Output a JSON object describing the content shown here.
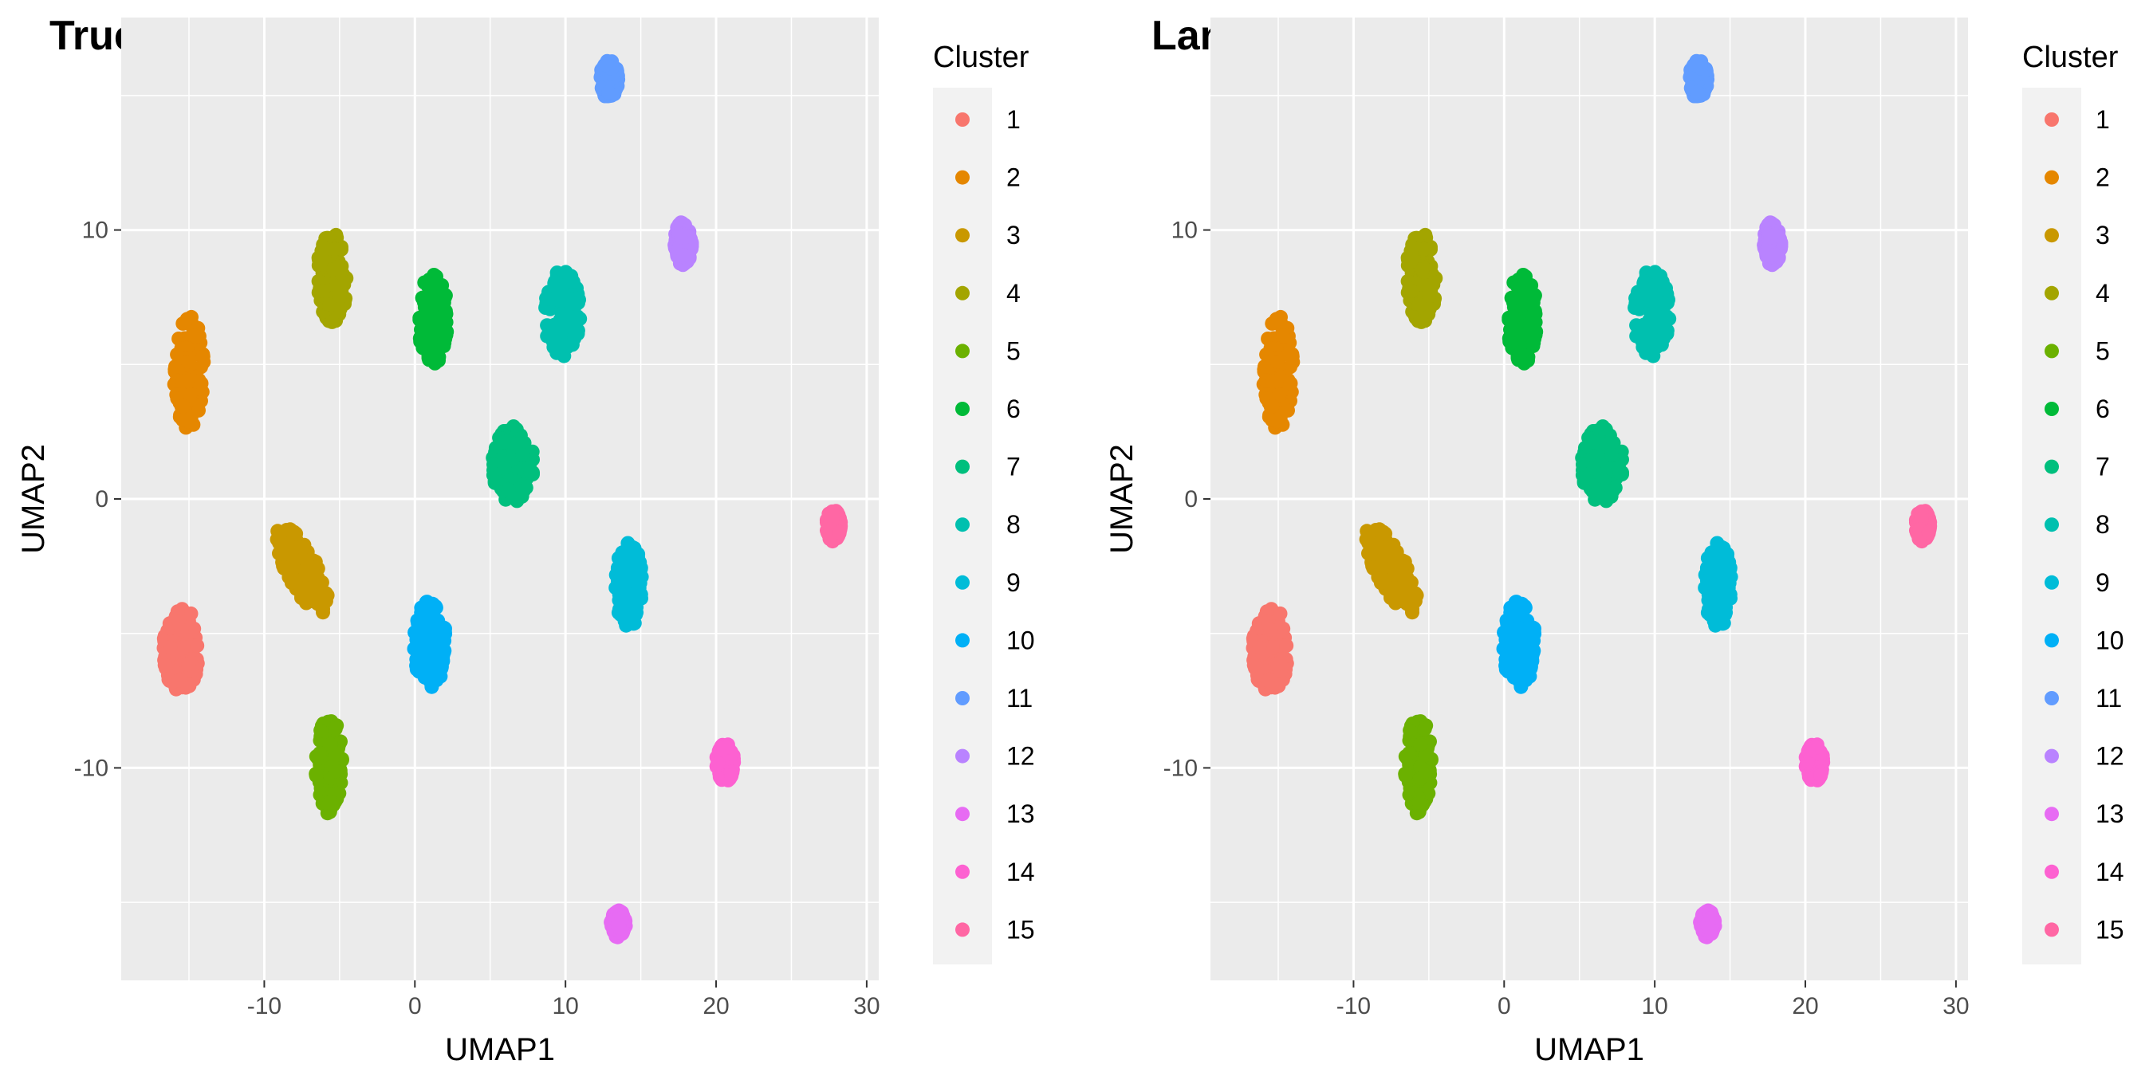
{
  "chart_data": [
    {
      "type": "scatter",
      "title": "True",
      "xlabel": "UMAP1",
      "ylabel": "UMAP2",
      "xlim": [
        -19.5,
        30.8
      ],
      "ylim": [
        -17.9,
        17.9
      ],
      "xticks": [
        -10,
        0,
        10,
        20,
        30
      ],
      "yticks": [
        -10,
        0,
        10
      ],
      "grid": true,
      "legend": {
        "title": "Cluster",
        "position": "right"
      },
      "series": [
        {
          "name": "1",
          "color": "#F8766D",
          "center": [
            -15.5,
            -5.6
          ],
          "spread": [
            1.2,
            1.6
          ]
        },
        {
          "name": "2",
          "color": "#E58700",
          "center": [
            -15.0,
            4.7
          ],
          "spread": [
            1.0,
            2.1
          ]
        },
        {
          "name": "3",
          "color": "#C99800",
          "center": [
            -7.5,
            -2.6
          ],
          "spread": [
            2.2,
            0.9
          ],
          "tilt": -0.75
        },
        {
          "name": "4",
          "color": "#A3A500",
          "center": [
            -5.5,
            8.2
          ],
          "spread": [
            1.0,
            1.7
          ]
        },
        {
          "name": "5",
          "color": "#6BB100",
          "center": [
            -5.7,
            -9.9
          ],
          "spread": [
            0.9,
            1.8
          ]
        },
        {
          "name": "6",
          "color": "#00BA38",
          "center": [
            1.2,
            6.7
          ],
          "spread": [
            1.0,
            1.7
          ]
        },
        {
          "name": "7",
          "color": "#00BF7D",
          "center": [
            6.5,
            1.3
          ],
          "spread": [
            1.4,
            1.4
          ]
        },
        {
          "name": "8",
          "color": "#00C0AF",
          "center": [
            9.8,
            6.9
          ],
          "spread": [
            1.2,
            1.6
          ]
        },
        {
          "name": "9",
          "color": "#00BCD8",
          "center": [
            14.2,
            -3.2
          ],
          "spread": [
            0.9,
            1.6
          ]
        },
        {
          "name": "10",
          "color": "#00B0F6",
          "center": [
            1.0,
            -5.4
          ],
          "spread": [
            1.1,
            1.6
          ]
        },
        {
          "name": "11",
          "color": "#619CFF",
          "center": [
            12.9,
            15.6
          ],
          "spread": [
            0.6,
            0.7
          ]
        },
        {
          "name": "12",
          "color": "#B983FF",
          "center": [
            17.8,
            9.5
          ],
          "spread": [
            0.6,
            0.8
          ]
        },
        {
          "name": "13",
          "color": "#E76BF3",
          "center": [
            13.5,
            -15.8
          ],
          "spread": [
            0.5,
            0.5
          ]
        },
        {
          "name": "14",
          "color": "#FD61D1",
          "center": [
            20.6,
            -9.8
          ],
          "spread": [
            0.6,
            0.7
          ]
        },
        {
          "name": "15",
          "color": "#FF67A4",
          "center": [
            27.8,
            -1.0
          ],
          "spread": [
            0.5,
            0.6
          ]
        }
      ]
    },
    {
      "type": "scatter",
      "title": "Lamb",
      "xlabel": "UMAP1",
      "ylabel": "UMAP2",
      "xlim": [
        -19.5,
        30.8
      ],
      "ylim": [
        -17.9,
        17.9
      ],
      "xticks": [
        -10,
        0,
        10,
        20,
        30
      ],
      "yticks": [
        -10,
        0,
        10
      ],
      "grid": true,
      "legend": {
        "title": "Cluster",
        "position": "right"
      },
      "series": [
        {
          "name": "1",
          "color": "#F8766D",
          "center": [
            -15.5,
            -5.6
          ],
          "spread": [
            1.2,
            1.6
          ]
        },
        {
          "name": "2",
          "color": "#E58700",
          "center": [
            -15.0,
            4.7
          ],
          "spread": [
            1.0,
            2.1
          ]
        },
        {
          "name": "3",
          "color": "#C99800",
          "center": [
            -7.5,
            -2.6
          ],
          "spread": [
            2.2,
            0.9
          ],
          "tilt": -0.75
        },
        {
          "name": "4",
          "color": "#A3A500",
          "center": [
            -5.5,
            8.2
          ],
          "spread": [
            1.0,
            1.7
          ]
        },
        {
          "name": "5",
          "color": "#6BB100",
          "center": [
            -5.7,
            -9.9
          ],
          "spread": [
            0.9,
            1.8
          ]
        },
        {
          "name": "6",
          "color": "#00BA38",
          "center": [
            1.2,
            6.7
          ],
          "spread": [
            1.0,
            1.7
          ]
        },
        {
          "name": "7",
          "color": "#00BF7D",
          "center": [
            6.5,
            1.3
          ],
          "spread": [
            1.4,
            1.4
          ]
        },
        {
          "name": "8",
          "color": "#00C0AF",
          "center": [
            9.8,
            6.9
          ],
          "spread": [
            1.2,
            1.6
          ]
        },
        {
          "name": "9",
          "color": "#00BCD8",
          "center": [
            14.2,
            -3.2
          ],
          "spread": [
            0.9,
            1.6
          ]
        },
        {
          "name": "10",
          "color": "#00B0F6",
          "center": [
            1.0,
            -5.4
          ],
          "spread": [
            1.1,
            1.6
          ]
        },
        {
          "name": "11",
          "color": "#619CFF",
          "center": [
            12.9,
            15.6
          ],
          "spread": [
            0.6,
            0.7
          ]
        },
        {
          "name": "12",
          "color": "#B983FF",
          "center": [
            17.8,
            9.5
          ],
          "spread": [
            0.6,
            0.8
          ]
        },
        {
          "name": "13",
          "color": "#E76BF3",
          "center": [
            13.5,
            -15.8
          ],
          "spread": [
            0.5,
            0.5
          ]
        },
        {
          "name": "14",
          "color": "#FD61D1",
          "center": [
            20.6,
            -9.8
          ],
          "spread": [
            0.6,
            0.7
          ]
        },
        {
          "name": "15",
          "color": "#FF67A4",
          "center": [
            27.8,
            -1.0
          ],
          "spread": [
            0.5,
            0.6
          ]
        }
      ]
    }
  ]
}
